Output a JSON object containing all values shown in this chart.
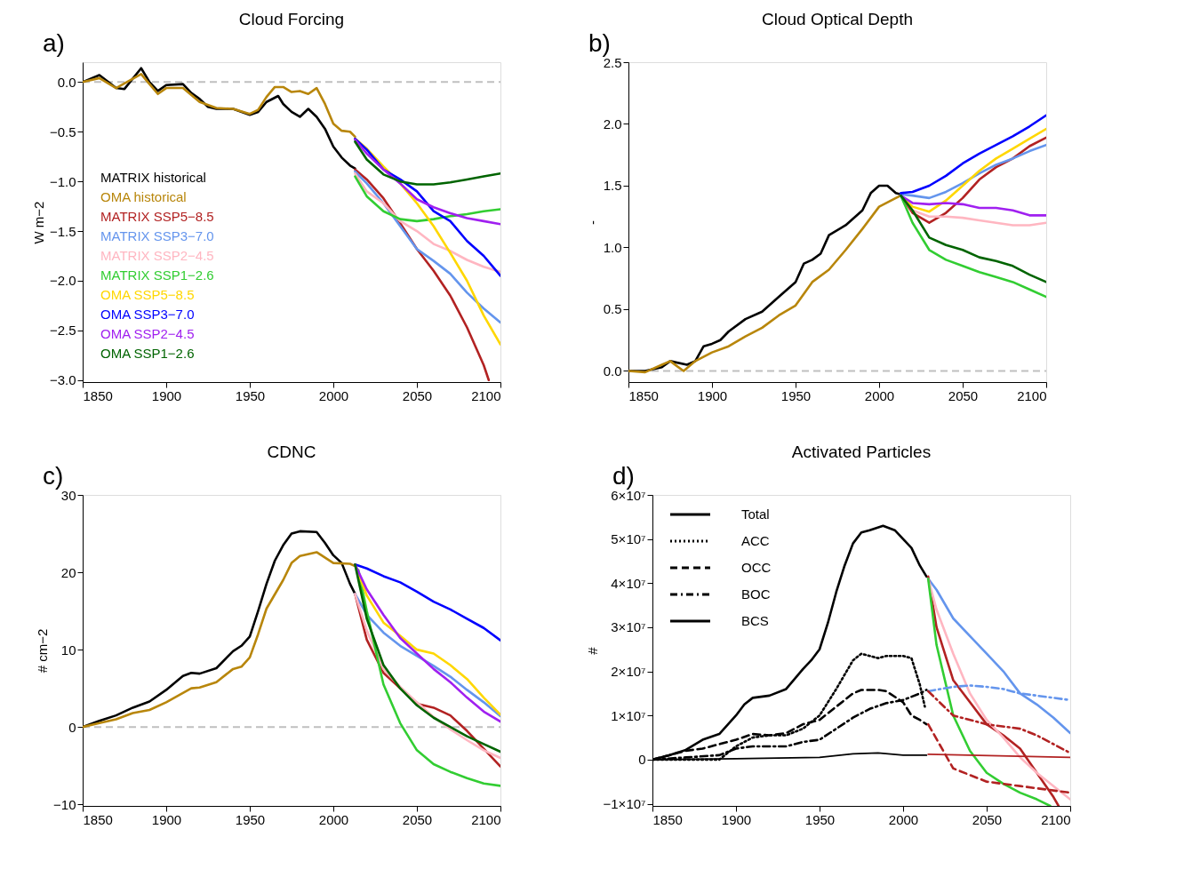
{
  "chart_data": [
    {
      "type": "line",
      "title": "Cloud Forcing",
      "ylabel": "W m−2",
      "annotations": [
        "a)"
      ],
      "legend": "left",
      "grid": false,
      "xlim": [
        1850,
        2100
      ],
      "xticks": [
        1850,
        1900,
        1950,
        2000,
        2050,
        2100
      ],
      "ylim": [
        -3.02,
        0.2
      ],
      "yticks": [
        {
          "value": -3.0,
          "label": "−3.0"
        },
        {
          "value": -2.5,
          "label": "−2.5"
        },
        {
          "value": -2.0,
          "label": "−2.0"
        },
        {
          "value": -1.5,
          "label": "−1.5"
        },
        {
          "value": -1.0,
          "label": "−1.0"
        },
        {
          "value": -0.5,
          "label": "−0.5"
        },
        {
          "value": 0,
          "label": "0.0"
        }
      ],
      "ref_lines": [
        {
          "axis": "y",
          "value": 0,
          "color": "#c0c0c0",
          "line_style": "dashed"
        }
      ],
      "series": [
        {
          "name": "MATRIX historical",
          "color": "#000000",
          "x": [
            1850,
            1860,
            1870,
            1875,
            1885,
            1890,
            1895,
            1900,
            1910,
            1915,
            1920,
            1925,
            1930,
            1940,
            1950,
            1955,
            1960,
            1967,
            1970,
            1975,
            1980,
            1985,
            1990,
            1995,
            2000,
            2005,
            2010,
            2013
          ],
          "values": [
            0.0,
            0.07,
            -0.06,
            -0.07,
            0.14,
            0.0,
            -0.09,
            -0.03,
            -0.02,
            -0.11,
            -0.17,
            -0.25,
            -0.27,
            -0.27,
            -0.33,
            -0.3,
            -0.2,
            -0.14,
            -0.22,
            -0.3,
            -0.35,
            -0.27,
            -0.35,
            -0.47,
            -0.65,
            -0.76,
            -0.84,
            -0.87
          ]
        },
        {
          "name": "OMA historical",
          "color": "#b8860b",
          "x": [
            1850,
            1860,
            1870,
            1885,
            1890,
            1895,
            1900,
            1910,
            1920,
            1930,
            1940,
            1950,
            1955,
            1960,
            1965,
            1970,
            1975,
            1980,
            1985,
            1990,
            1995,
            2000,
            2005,
            2010,
            2013
          ],
          "values": [
            0.0,
            0.04,
            -0.06,
            0.08,
            -0.02,
            -0.12,
            -0.06,
            -0.06,
            -0.2,
            -0.26,
            -0.27,
            -0.32,
            -0.28,
            -0.15,
            -0.05,
            -0.05,
            -0.1,
            -0.09,
            -0.12,
            -0.06,
            -0.22,
            -0.42,
            -0.49,
            -0.5,
            -0.55
          ]
        },
        {
          "name": "MATRIX SSP5−8.5",
          "color": "#b22222",
          "x": [
            2013,
            2020,
            2030,
            2040,
            2050,
            2060,
            2070,
            2080,
            2090,
            2093
          ],
          "values": [
            -0.88,
            -0.98,
            -1.17,
            -1.42,
            -1.68,
            -1.9,
            -2.15,
            -2.47,
            -2.85,
            -3.0
          ]
        },
        {
          "name": "MATRIX SSP3−7.0",
          "color": "#6495ed",
          "x": [
            2013,
            2020,
            2030,
            2040,
            2050,
            2060,
            2070,
            2080,
            2090,
            2100
          ],
          "values": [
            -0.9,
            -1.02,
            -1.22,
            -1.45,
            -1.68,
            -1.8,
            -1.93,
            -2.12,
            -2.28,
            -2.42
          ]
        },
        {
          "name": "MATRIX SSP2−4.5",
          "color": "#ffb6c1",
          "x": [
            2013,
            2020,
            2030,
            2040,
            2050,
            2060,
            2070,
            2080,
            2090,
            2100
          ],
          "values": [
            -0.92,
            -1.1,
            -1.22,
            -1.4,
            -1.5,
            -1.63,
            -1.7,
            -1.79,
            -1.86,
            -1.91
          ]
        },
        {
          "name": "MATRIX SSP1−2.6",
          "color": "#32cd32",
          "x": [
            2013,
            2020,
            2030,
            2040,
            2050,
            2060,
            2070,
            2080,
            2090,
            2100
          ],
          "values": [
            -0.95,
            -1.15,
            -1.3,
            -1.38,
            -1.4,
            -1.38,
            -1.35,
            -1.33,
            -1.3,
            -1.28
          ]
        },
        {
          "name": "OMA SSP5−8.5",
          "color": "#ffd700",
          "x": [
            2013,
            2020,
            2030,
            2040,
            2050,
            2060,
            2070,
            2080,
            2090,
            2100
          ],
          "values": [
            -0.57,
            -0.67,
            -0.85,
            -1.02,
            -1.22,
            -1.45,
            -1.72,
            -2.0,
            -2.35,
            -2.64
          ]
        },
        {
          "name": "OMA SSP3−7.0",
          "color": "#0000ff",
          "x": [
            2013,
            2020,
            2030,
            2040,
            2050,
            2060,
            2070,
            2080,
            2090,
            2100
          ],
          "values": [
            -0.57,
            -0.68,
            -0.88,
            -0.98,
            -1.1,
            -1.3,
            -1.4,
            -1.6,
            -1.75,
            -1.95
          ]
        },
        {
          "name": "OMA SSP2−4.5",
          "color": "#a020f0",
          "x": [
            2013,
            2020,
            2030,
            2040,
            2050,
            2060,
            2070,
            2080,
            2090,
            2100
          ],
          "values": [
            -0.58,
            -0.72,
            -0.88,
            -1.02,
            -1.18,
            -1.26,
            -1.32,
            -1.37,
            -1.4,
            -1.43
          ]
        },
        {
          "name": "OMA SSP1−2.6",
          "color": "#006400",
          "x": [
            2013,
            2020,
            2030,
            2040,
            2050,
            2060,
            2070,
            2080,
            2090,
            2100
          ],
          "values": [
            -0.6,
            -0.78,
            -0.93,
            -1.0,
            -1.03,
            -1.03,
            -1.01,
            -0.98,
            -0.95,
            -0.92
          ]
        }
      ]
    },
    {
      "type": "line",
      "title": "Cloud Optical Depth",
      "ylabel": "-",
      "annotations": [
        "b)"
      ],
      "grid": false,
      "xlim": [
        1850,
        2100
      ],
      "xticks": [
        1850,
        1900,
        1950,
        2000,
        2050,
        2100
      ],
      "ylim": [
        -0.09,
        2.5
      ],
      "yticks": [
        {
          "value": 0,
          "label": "0.0"
        },
        0.5,
        {
          "value": 1,
          "label": "1.0"
        },
        1.5,
        {
          "value": 2,
          "label": "2.0"
        },
        2.5
      ],
      "ref_lines": [
        {
          "axis": "y",
          "value": 0,
          "color": "#c0c0c0",
          "line_style": "dashed"
        }
      ],
      "series": [
        {
          "color": "#000000",
          "x": [
            1850,
            1860,
            1870,
            1875,
            1885,
            1890,
            1895,
            1900,
            1905,
            1910,
            1920,
            1930,
            1940,
            1950,
            1955,
            1960,
            1965,
            1970,
            1980,
            1990,
            1995,
            2000,
            2005,
            2010,
            2013
          ],
          "values": [
            0.0,
            0.0,
            0.03,
            0.08,
            0.05,
            0.08,
            0.2,
            0.22,
            0.25,
            0.32,
            0.42,
            0.48,
            0.6,
            0.72,
            0.87,
            0.9,
            0.95,
            1.1,
            1.18,
            1.3,
            1.44,
            1.5,
            1.5,
            1.44,
            1.43
          ]
        },
        {
          "color": "#b8860b",
          "x": [
            1850,
            1860,
            1870,
            1875,
            1883,
            1890,
            1900,
            1910,
            1920,
            1930,
            1940,
            1950,
            1960,
            1970,
            1980,
            1990,
            2000,
            2010,
            2013
          ],
          "values": [
            0.0,
            -0.01,
            0.05,
            0.08,
            0.0,
            0.08,
            0.15,
            0.2,
            0.28,
            0.35,
            0.45,
            0.53,
            0.72,
            0.82,
            0.98,
            1.15,
            1.33,
            1.4,
            1.42
          ]
        },
        {
          "color": "#b22222",
          "x": [
            2013,
            2020,
            2030,
            2040,
            2050,
            2060,
            2070,
            2080,
            2090,
            2100
          ],
          "values": [
            1.42,
            1.28,
            1.2,
            1.28,
            1.4,
            1.55,
            1.65,
            1.72,
            1.82,
            1.89
          ]
        },
        {
          "color": "#6495ed",
          "x": [
            2013,
            2020,
            2030,
            2040,
            2050,
            2060,
            2070,
            2080,
            2090,
            2100
          ],
          "values": [
            1.43,
            1.42,
            1.4,
            1.45,
            1.52,
            1.6,
            1.67,
            1.72,
            1.78,
            1.83
          ]
        },
        {
          "color": "#ffb6c1",
          "x": [
            2013,
            2020,
            2030,
            2040,
            2050,
            2060,
            2070,
            2080,
            2090,
            2100
          ],
          "values": [
            1.42,
            1.3,
            1.25,
            1.25,
            1.24,
            1.22,
            1.2,
            1.18,
            1.18,
            1.2
          ]
        },
        {
          "color": "#32cd32",
          "x": [
            2013,
            2020,
            2030,
            2040,
            2050,
            2060,
            2070,
            2080,
            2090,
            2100
          ],
          "values": [
            1.42,
            1.2,
            0.98,
            0.9,
            0.85,
            0.8,
            0.76,
            0.72,
            0.66,
            0.6
          ]
        },
        {
          "color": "#ffd700",
          "x": [
            2013,
            2020,
            2030,
            2040,
            2050,
            2060,
            2070,
            2080,
            2090,
            2100
          ],
          "values": [
            1.42,
            1.33,
            1.29,
            1.38,
            1.5,
            1.62,
            1.72,
            1.8,
            1.88,
            1.96
          ]
        },
        {
          "color": "#0000ff",
          "x": [
            2013,
            2020,
            2030,
            2040,
            2050,
            2060,
            2070,
            2080,
            2090,
            2100
          ],
          "values": [
            1.44,
            1.45,
            1.5,
            1.58,
            1.68,
            1.76,
            1.83,
            1.9,
            1.98,
            2.07
          ]
        },
        {
          "color": "#a020f0",
          "x": [
            2013,
            2020,
            2030,
            2040,
            2050,
            2060,
            2070,
            2080,
            2090,
            2100
          ],
          "values": [
            1.42,
            1.36,
            1.35,
            1.36,
            1.35,
            1.32,
            1.32,
            1.3,
            1.26,
            1.26
          ]
        },
        {
          "color": "#006400",
          "x": [
            2013,
            2020,
            2030,
            2040,
            2050,
            2060,
            2070,
            2080,
            2090,
            2100
          ],
          "values": [
            1.42,
            1.3,
            1.08,
            1.02,
            0.98,
            0.92,
            0.89,
            0.85,
            0.78,
            0.72
          ]
        }
      ]
    },
    {
      "type": "line",
      "title": "CDNC",
      "ylabel": "# cm−2",
      "annotations": [
        "c)"
      ],
      "grid": false,
      "xlim": [
        1850,
        2100
      ],
      "xticks": [
        1850,
        1900,
        1950,
        2000,
        2050,
        2100
      ],
      "ylim": [
        -10.2,
        30
      ],
      "yticks": [
        {
          "value": -10,
          "label": "−10"
        },
        0,
        10,
        20,
        30
      ],
      "ref_lines": [
        {
          "axis": "y",
          "value": 0,
          "color": "#c0c0c0",
          "line_style": "dashed"
        }
      ],
      "series": [
        {
          "color": "#000000",
          "x": [
            1850,
            1860,
            1870,
            1880,
            1890,
            1900,
            1910,
            1915,
            1920,
            1930,
            1940,
            1945,
            1950,
            1955,
            1960,
            1965,
            1970,
            1975,
            1980,
            1990,
            1995,
            2000,
            2005,
            2010,
            2013
          ],
          "values": [
            0,
            0.8,
            1.5,
            2.5,
            3.3,
            4.8,
            6.6,
            7.0,
            6.9,
            7.6,
            9.8,
            10.5,
            11.7,
            15,
            18.5,
            21.5,
            23.5,
            25,
            25.3,
            25.2,
            23.8,
            22.2,
            21.2,
            18.5,
            17.2
          ]
        },
        {
          "color": "#b8860b",
          "x": [
            1850,
            1860,
            1870,
            1880,
            1890,
            1900,
            1910,
            1915,
            1920,
            1930,
            1940,
            1945,
            1950,
            1955,
            1960,
            1970,
            1975,
            1980,
            1990,
            2000,
            2010,
            2013
          ],
          "values": [
            0,
            0.5,
            1.0,
            1.8,
            2.2,
            3.2,
            4.4,
            5.0,
            5.1,
            5.8,
            7.5,
            7.8,
            9,
            12,
            15.3,
            19,
            21.2,
            22.1,
            22.6,
            21.2,
            21.1,
            20.8
          ]
        },
        {
          "color": "#b22222",
          "x": [
            2013,
            2020,
            2030,
            2040,
            2050,
            2060,
            2070,
            2080,
            2090,
            2100
          ],
          "values": [
            17.2,
            11.3,
            7.0,
            5.0,
            3.0,
            2.5,
            1.5,
            -0.5,
            -2.8,
            -5.1
          ]
        },
        {
          "color": "#6495ed",
          "x": [
            2013,
            2020,
            2030,
            2040,
            2050,
            2060,
            2070,
            2080,
            2090,
            2100
          ],
          "values": [
            17.2,
            14.5,
            12.2,
            10.5,
            9.2,
            7.9,
            6.5,
            4.8,
            3.2,
            1.4
          ]
        },
        {
          "color": "#ffb6c1",
          "x": [
            2013,
            2020,
            2030,
            2040,
            2050,
            2060,
            2070,
            2080,
            2090,
            2100
          ],
          "values": [
            17.2,
            12.5,
            7.5,
            5.2,
            3.2,
            1.3,
            -0.3,
            -1.7,
            -3.0,
            -4.0
          ]
        },
        {
          "color": "#32cd32",
          "x": [
            2015,
            2020,
            2030,
            2040,
            2050,
            2060,
            2070,
            2080,
            2090,
            2100
          ],
          "values": [
            20.3,
            15,
            5.5,
            0.5,
            -3,
            -4.8,
            -5.8,
            -6.6,
            -7.3,
            -7.6
          ]
        },
        {
          "color": "#ffd700",
          "x": [
            2013,
            2020,
            2030,
            2040,
            2050,
            2060,
            2070,
            2080,
            2090,
            2100
          ],
          "values": [
            21,
            17,
            13.5,
            11.8,
            10,
            9.5,
            8.0,
            6.2,
            3.8,
            1.6
          ]
        },
        {
          "color": "#0000ff",
          "x": [
            2013,
            2020,
            2030,
            2040,
            2050,
            2060,
            2070,
            2080,
            2090,
            2100
          ],
          "values": [
            21,
            20.5,
            19.5,
            18.7,
            17.5,
            16.2,
            15.2,
            14.0,
            12.8,
            11.2
          ]
        },
        {
          "color": "#a020f0",
          "x": [
            2013,
            2020,
            2030,
            2040,
            2050,
            2060,
            2070,
            2080,
            2090,
            2100
          ],
          "values": [
            21,
            17.8,
            14.5,
            11.5,
            9.5,
            7.5,
            5.8,
            3.8,
            2.0,
            0.7
          ]
        },
        {
          "color": "#006400",
          "x": [
            2013,
            2020,
            2030,
            2040,
            2050,
            2060,
            2070,
            2080,
            2090,
            2100
          ],
          "values": [
            21,
            14,
            8.0,
            5.0,
            2.8,
            1.2,
            0,
            -1.2,
            -2.2,
            -3.2
          ]
        }
      ]
    },
    {
      "type": "line",
      "title": "Activated Particles",
      "ylabel": "#",
      "annotations": [
        "d)"
      ],
      "legend": "top left",
      "grid": false,
      "xlim": [
        1850,
        2100
      ],
      "xticks": [
        1850,
        1900,
        1950,
        2000,
        2050,
        2100
      ],
      "ylim": [
        -10500000,
        60000000
      ],
      "yticks": [
        {
          "value": -10000000,
          "label": "−1×10⁷"
        },
        0,
        {
          "value": 10000000,
          "label": "1×10⁷"
        },
        {
          "value": 20000000,
          "label": "2×10⁷"
        },
        {
          "value": 30000000,
          "label": "3×10⁷"
        },
        {
          "value": 40000000,
          "label": "4×10⁷"
        },
        {
          "value": 50000000,
          "label": "5×10⁷"
        },
        {
          "value": 60000000,
          "label": "6×10⁷"
        }
      ],
      "series": [
        {
          "name": "Total",
          "color": "#000000",
          "line_style": "solid",
          "x": [
            1850,
            1860,
            1870,
            1880,
            1890,
            1900,
            1905,
            1910,
            1920,
            1930,
            1940,
            1945,
            1950,
            1955,
            1960,
            1965,
            1970,
            1975,
            1980,
            1988,
            1995,
            2000,
            2005,
            2010,
            2014
          ],
          "values": [
            0,
            1000000,
            2200000,
            4500000,
            5800000,
            10000000,
            12500000,
            14000000,
            14500000,
            16000000,
            20500000,
            22500000,
            25000000,
            31000000,
            38000000,
            44000000,
            49000000,
            51500000,
            52000000,
            53000000,
            52000000,
            50000000,
            48000000,
            44000000,
            41500000
          ]
        },
        {
          "name": "ACC",
          "color": "#000000",
          "line_style": "dotted",
          "x": [
            1850,
            1870,
            1890,
            1900,
            1910,
            1920,
            1930,
            1940,
            1950,
            1960,
            1970,
            1975,
            1980,
            1985,
            1990,
            2000,
            2005,
            2010,
            2013
          ],
          "values": [
            0,
            0,
            0,
            3000000,
            5000000,
            5500000,
            5500000,
            7000000,
            10000000,
            16000000,
            22500000,
            24000000,
            23500000,
            23000000,
            23500000,
            23500000,
            23000000,
            17000000,
            12000000
          ]
        },
        {
          "name": "OCC",
          "color": "#000000",
          "line_style": "dashed",
          "x": [
            1850,
            1860,
            1870,
            1880,
            1890,
            1900,
            1910,
            1920,
            1930,
            1940,
            1950,
            1960,
            1970,
            1975,
            1985,
            1990,
            2000,
            2005,
            2010,
            2014
          ],
          "values": [
            0,
            1000000,
            2000000,
            2500000,
            3500000,
            4500000,
            5800000,
            5500000,
            6000000,
            8000000,
            9000000,
            12000000,
            15000000,
            15800000,
            15800000,
            15500000,
            13000000,
            10000000,
            9000000,
            8000000
          ]
        },
        {
          "name": "BOC",
          "color": "#000000",
          "line_style": "dashdot",
          "x": [
            1850,
            1870,
            1890,
            1900,
            1910,
            1920,
            1930,
            1940,
            1950,
            1960,
            1970,
            1980,
            1990,
            2000,
            2010,
            2014
          ],
          "values": [
            0,
            500000,
            1000000,
            2500000,
            3000000,
            3000000,
            3000000,
            4000000,
            4500000,
            7000000,
            9500000,
            11500000,
            12800000,
            13500000,
            15000000,
            15800000
          ]
        },
        {
          "name": "BCS",
          "color": "#000000",
          "line_style": "solid",
          "x": [
            1850,
            1900,
            1950,
            1970,
            1985,
            2000,
            2014
          ],
          "values": [
            0,
            200000,
            500000,
            1300000,
            1500000,
            1000000,
            1000000
          ]
        },
        {
          "color": "#6495ed",
          "x": [
            2015,
            2020,
            2030,
            2040,
            2050,
            2060,
            2070,
            2080,
            2090,
            2100
          ],
          "values": [
            41000000,
            38500000,
            32000000,
            28000000,
            24000000,
            20000000,
            15000000,
            12500000,
            9500000,
            6000000
          ]
        },
        {
          "color": "#b22222",
          "x": [
            2015,
            2020,
            2030,
            2040,
            2050,
            2060,
            2070,
            2080,
            2090,
            2093
          ],
          "values": [
            41500000,
            30000000,
            18000000,
            13000000,
            8000000,
            5500000,
            2500000,
            -3000000,
            -8500000,
            -10500000
          ]
        },
        {
          "color": "#ffb6c1",
          "x": [
            2015,
            2020,
            2030,
            2040,
            2050,
            2060,
            2070,
            2080,
            2090,
            2100
          ],
          "values": [
            41000000,
            34000000,
            24000000,
            15000000,
            9000000,
            5000000,
            500000,
            -3000000,
            -6000000,
            -9000000
          ]
        },
        {
          "color": "#32cd32",
          "x": [
            2015,
            2020,
            2030,
            2040,
            2050,
            2060,
            2070,
            2080,
            2088
          ],
          "values": [
            41000000,
            26000000,
            10000000,
            2000000,
            -3000000,
            -5500000,
            -7500000,
            -9000000,
            -10500000
          ]
        },
        {
          "color": "#6495ed",
          "line_style": "dashdot",
          "x": [
            2015,
            2030,
            2040,
            2050,
            2060,
            2070,
            2080,
            2090,
            2100
          ],
          "values": [
            15500000,
            16500000,
            16800000,
            16500000,
            16000000,
            15000000,
            14500000,
            14000000,
            13500000
          ]
        },
        {
          "color": "#b22222",
          "line_style": "dashdot",
          "x": [
            2015,
            2030,
            2050,
            2070,
            2080,
            2090,
            2100
          ],
          "values": [
            15500000,
            10000000,
            8000000,
            7000000,
            5500000,
            3500000,
            1500000
          ]
        },
        {
          "color": "#b22222",
          "line_style": "dashed",
          "x": [
            2015,
            2030,
            2050,
            2070,
            2090,
            2100
          ],
          "values": [
            8000000,
            -2000000,
            -5000000,
            -6000000,
            -7000000,
            -7500000
          ]
        },
        {
          "color": "#b22222",
          "line_style": "solid",
          "x": [
            2015,
            2100
          ],
          "values": [
            1200000,
            500000
          ]
        }
      ]
    }
  ]
}
